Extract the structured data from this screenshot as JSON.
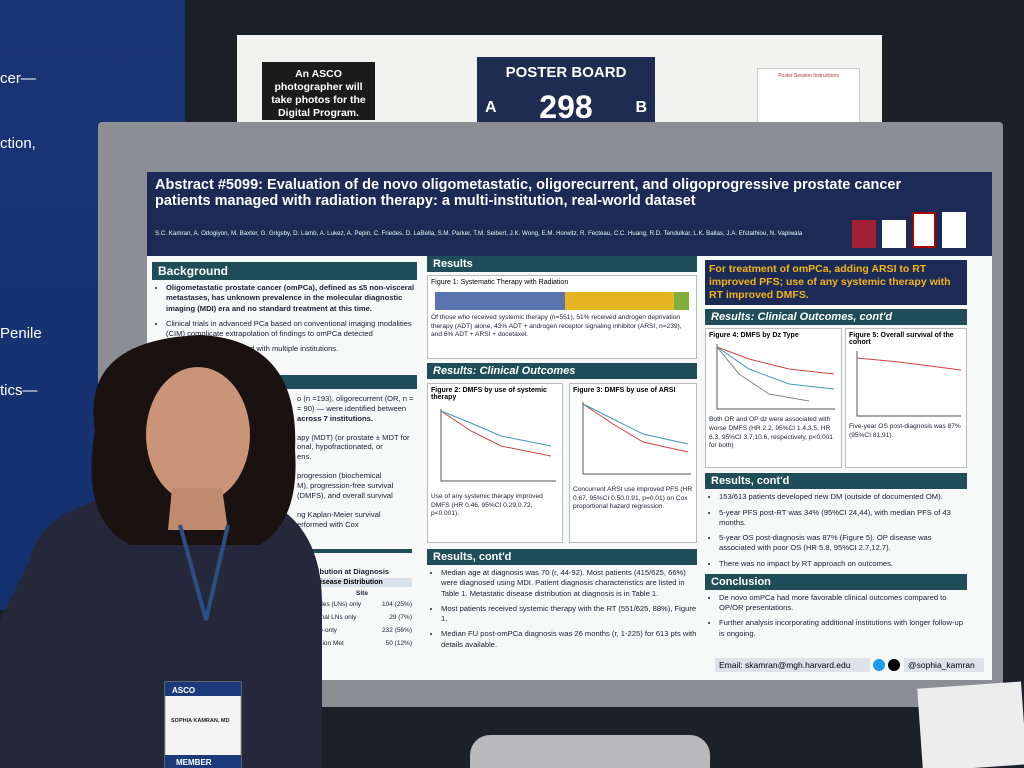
{
  "banner": {
    "lines": [
      "cer—",
      "ction,",
      "Penile",
      "tics—"
    ]
  },
  "signs": {
    "photographer": "An ASCO photographer will take photos for the Digital Program.",
    "board_label": "POSTER BOARD",
    "side_a": "A",
    "number": "298",
    "side_b": "B",
    "instructions": "Poster Session Instructions"
  },
  "poster": {
    "title": "Abstract #5099: Evaluation of de novo oligometastatic, oligorecurrent, and oligoprogressive prostate cancer patients managed with radiation therapy: a multi-institution, real-world dataset",
    "authors": "S.C. Kamran, A. Odogiyon, M. Baxter, G. Grigsby, D. Lamb, A. Lukez, A. Pepin, C. Friedes, D. LaBella, S.M. Parker, T.M. Seibert, J.K. Wong, E.M. Horwitz, R. Fecteau, C.C. Huang, R.D. Tendulkar, L.K. Ballas, J.A. Efstathiou, N. Vapiwala",
    "background": {
      "heading": "Background",
      "bullets": [
        "Oligometastatic prostate cancer (omPCa), defined as ≤5 non-visceral metastases, has unknown prevalence in the molecular diagnostic imaging (MDI) era and no standard treatment at this time.",
        "Clinical trials in advanced PCa based on conventional imaging modalities (CIM) complicate extrapolation of findings to omPCa detected",
        "of omPCa patients treated with multiple institutions."
      ]
    },
    "methods": {
      "fragments": [
        "o (n =193), oligorecurrent (OR, n =",
        "= 90) — were identified between",
        "across 7 institutions.",
        "apy (MDT) (or prostate ± MDT for",
        "onal, hypofractionated, or",
        "ens.",
        "progression (biochemical",
        "M), progression-free survival",
        "(DMFS), and overall survival",
        "ng Kaplan-Meier survival",
        "erformed with Cox"
      ]
    },
    "table": {
      "heading": "tribution at Diagnosis",
      "subheading": "Disease Distribution",
      "column": "Site",
      "rows": [
        [
          "nodes (LNs) only",
          "104 (25%)"
        ],
        [
          "gional LNs only",
          "29 (7%)"
        ],
        [
          "one-only",
          "232 (56%)"
        ],
        [
          "ination Met",
          "50 (12%)"
        ]
      ]
    },
    "results": {
      "heading": "Results",
      "figure1": "Figure 1: Systematic Therapy with Radiation",
      "caption1": "Of those who received systemic therapy (n=551), 51% received androgen deprivation therapy (ADT) alone, 43% ADT + androgen receptor signaling inhibitor (ARSI, n=239), and 6% ADT + ARSI + docetaxel."
    },
    "outcomes": {
      "heading": "Results: Clinical Outcomes",
      "figure2": "Figure 2: DMFS by use of systemic therapy",
      "figure3": "Figure 3: DMFS by use of ARSI",
      "caption2": "Use of any systemic therapy improved DMFS (HR 0.46, 95%CI 0.29,0.72, p<0.001).",
      "caption3": "Concurrent ARSI use improved PFS (HR 0.67, 95%CI 0.50,0.91, p=0.01) on Cox proportional hazard regression."
    },
    "results_contd": {
      "heading": "Results, cont'd",
      "bullets": [
        "Median age at diagnosis was 70 (r, 44-92). Most patients (415/625, 66%) were diagnosed using MDI. Patient diagnosis characteristics are listed in Table 1. Metastatic disease distribution at diagnosis is in Table 1.",
        "Most patients received systemic therapy with the RT (551/625, 88%), Figure 1.",
        "Median FU post-omPCa diagnosis was 26 months (r, 1-225) for 613 pts with details available."
      ]
    },
    "highlight": "For treatment of omPCa, adding ARSI to RT improved PFS; use of any systemic therapy with RT improved DMFS.",
    "outcomes_contd": {
      "heading": "Results: Clinical Outcomes, cont'd",
      "figure4": "Figure 4: DMFS by Dz Type",
      "figure5": "Figure 5: Overall survival of the cohort",
      "caption4": "Both OR and OP dz were associated with worse DMFS (HR 2.2, 95%CI 1.4,3.5, HR 6.3, 95%CI 3.7,10.6, respectively, p<0.001 for both)",
      "caption5": "Five-year OS post-diagnosis was 87% (95%CI 81,91)."
    },
    "results_contd2": {
      "heading": "Results, cont'd",
      "bullets": [
        "153/613 patients developed new DM (outside of documented OM).",
        "5-year PFS post-RT was 34% (95%CI 24,44), with median PFS of 43 months.",
        "5-year OS post-diagnosis was 87% (Figure 5). OP disease was associated with poor OS (HR 5.8, 95%CI 2.7,12.7).",
        "There was no impact by RT approach on outcomes."
      ]
    },
    "conclusion": {
      "heading": "Conclusion",
      "bullets": [
        "De novo omPCa had more favorable clinical outcomes compared to OP/OR presentations.",
        "Further analysis incorporating additional institutions with longer follow-up is ongoing."
      ]
    },
    "email": "Email: skamran@mgh.harvard.edu",
    "handle": "@sophia_kamran"
  },
  "badge": {
    "brand": "ASCO",
    "name": "SOPHIA KAMRAN, MD",
    "ribbon": "MEMBER"
  }
}
